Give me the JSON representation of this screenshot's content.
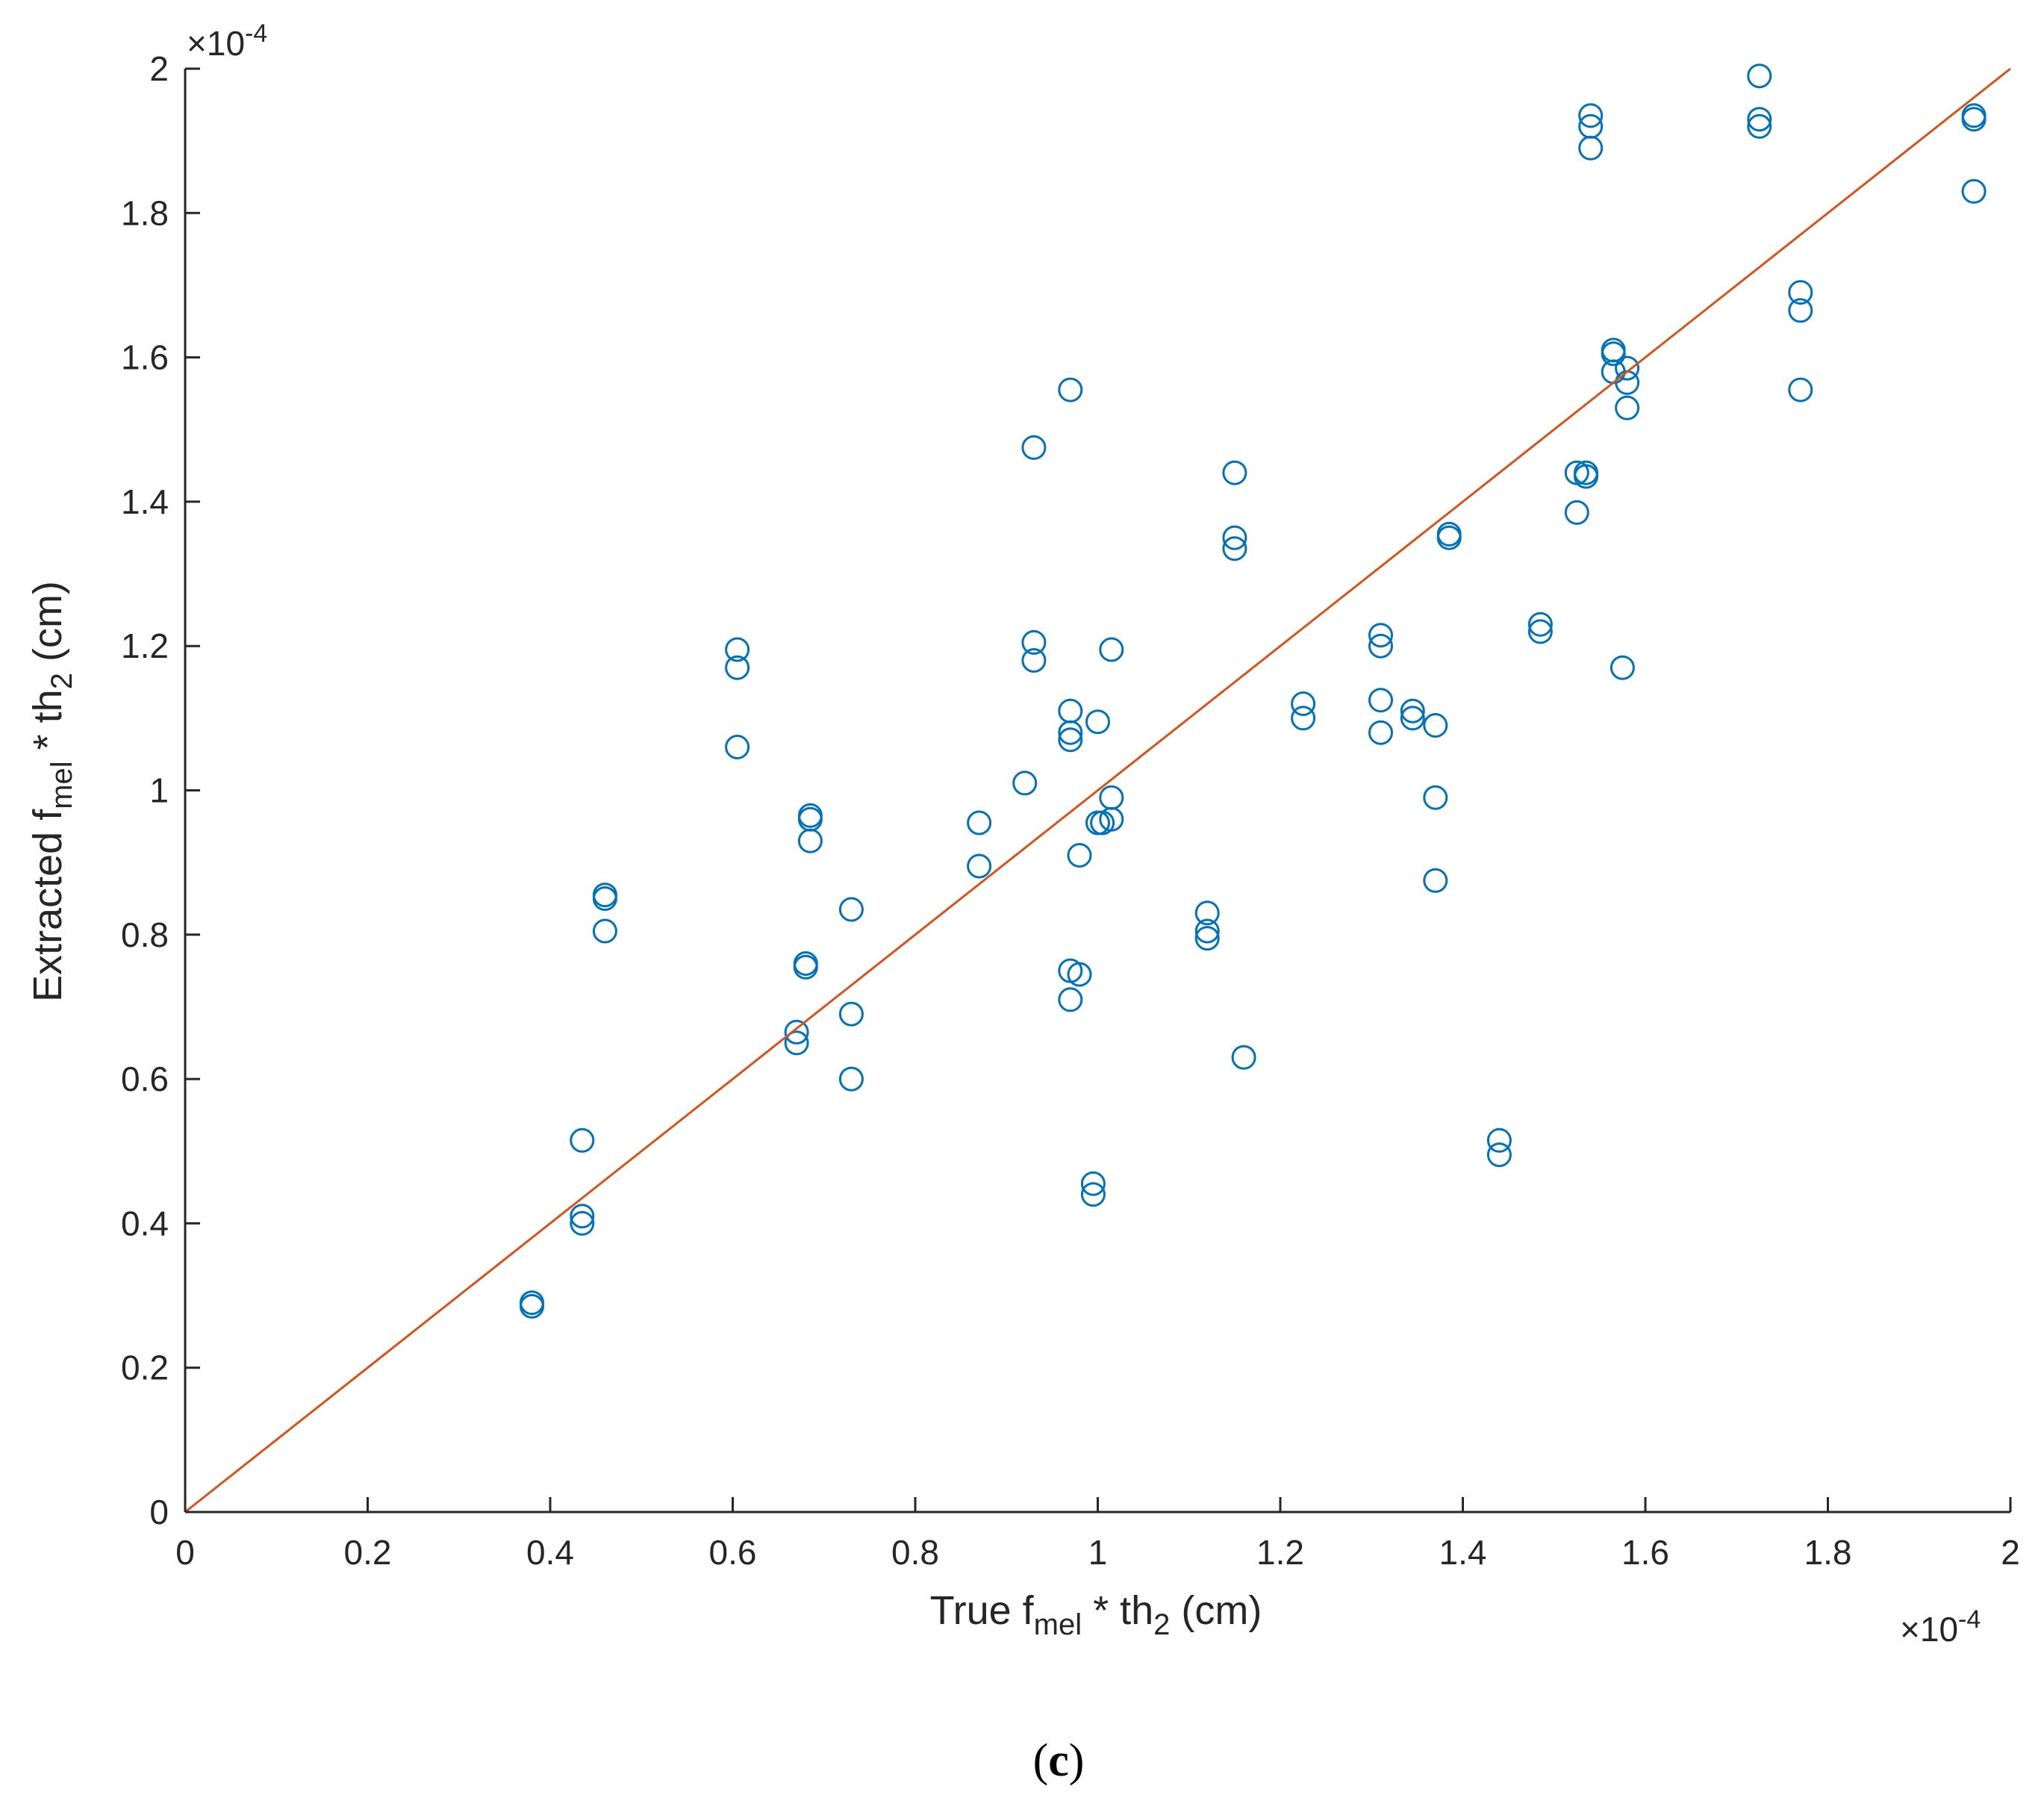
{
  "chart_data": {
    "type": "scatter",
    "xlabel": {
      "main": "True f",
      "sub": "mel",
      "mid": " * th",
      "sub2": "2",
      "unit": " (cm)"
    },
    "ylabel": {
      "main": "Extracted f",
      "sub": "mel",
      "mid": " * th",
      "sub2": "2",
      "unit": " (cm)"
    },
    "x_multiplier": {
      "base": "×10",
      "exp": "-4"
    },
    "y_multiplier": {
      "base": "×10",
      "exp": "-4"
    },
    "xlim": [
      0,
      2
    ],
    "ylim": [
      0,
      2
    ],
    "xticks": [
      0,
      0.2,
      0.4,
      0.6,
      0.8,
      1,
      1.2,
      1.4,
      1.6,
      1.8,
      2
    ],
    "yticks": [
      0,
      0.2,
      0.4,
      0.6,
      0.8,
      1,
      1.2,
      1.4,
      1.6,
      1.8,
      2
    ],
    "xtick_labels": [
      "0",
      "0.2",
      "0.4",
      "0.6",
      "0.8",
      "1",
      "1.2",
      "1.4",
      "1.6",
      "1.8",
      "2"
    ],
    "ytick_labels": [
      "0",
      "0.2",
      "0.4",
      "0.6",
      "0.8",
      "1",
      "1.2",
      "1.4",
      "1.6",
      "1.8",
      "2"
    ],
    "series": [
      {
        "name": "extracted",
        "marker": "circle-open",
        "color": "#0072BD",
        "points": [
          [
            0.38,
            0.29
          ],
          [
            0.38,
            0.285
          ],
          [
            0.435,
            0.515
          ],
          [
            0.435,
            0.41
          ],
          [
            0.435,
            0.4
          ],
          [
            0.46,
            0.855
          ],
          [
            0.46,
            0.85
          ],
          [
            0.46,
            0.805
          ],
          [
            0.605,
            1.195
          ],
          [
            0.605,
            1.17
          ],
          [
            0.605,
            1.06
          ],
          [
            0.67,
            0.665
          ],
          [
            0.67,
            0.65
          ],
          [
            0.68,
            0.76
          ],
          [
            0.68,
            0.755
          ],
          [
            0.685,
            0.965
          ],
          [
            0.685,
            0.96
          ],
          [
            0.685,
            0.93
          ],
          [
            0.73,
            0.835
          ],
          [
            0.73,
            0.69
          ],
          [
            0.73,
            0.6
          ],
          [
            0.87,
            0.955
          ],
          [
            0.87,
            0.895
          ],
          [
            0.92,
            1.01
          ],
          [
            0.93,
            1.475
          ],
          [
            0.93,
            1.205
          ],
          [
            0.93,
            1.18
          ],
          [
            0.97,
            1.555
          ],
          [
            0.97,
            1.11
          ],
          [
            0.97,
            1.08
          ],
          [
            0.97,
            1.07
          ],
          [
            0.97,
            0.75
          ],
          [
            0.97,
            0.71
          ],
          [
            0.98,
            0.91
          ],
          [
            0.98,
            0.745
          ],
          [
            0.995,
            0.455
          ],
          [
            0.995,
            0.44
          ],
          [
            1.0,
            1.095
          ],
          [
            1.0,
            0.955
          ],
          [
            1.005,
            0.955
          ],
          [
            1.015,
            1.195
          ],
          [
            1.015,
            0.99
          ],
          [
            1.015,
            0.96
          ],
          [
            1.12,
            0.83
          ],
          [
            1.12,
            0.805
          ],
          [
            1.12,
            0.795
          ],
          [
            1.15,
            1.44
          ],
          [
            1.15,
            1.35
          ],
          [
            1.15,
            1.335
          ],
          [
            1.16,
            0.63
          ],
          [
            1.225,
            1.12
          ],
          [
            1.225,
            1.1
          ],
          [
            1.31,
            1.215
          ],
          [
            1.31,
            1.2
          ],
          [
            1.31,
            1.125
          ],
          [
            1.31,
            1.08
          ],
          [
            1.345,
            1.11
          ],
          [
            1.345,
            1.1
          ],
          [
            1.37,
            1.09
          ],
          [
            1.37,
            0.99
          ],
          [
            1.37,
            0.875
          ],
          [
            1.385,
            1.355
          ],
          [
            1.385,
            1.35
          ],
          [
            1.44,
            0.515
          ],
          [
            1.44,
            0.495
          ],
          [
            1.485,
            1.23
          ],
          [
            1.485,
            1.22
          ],
          [
            1.525,
            1.44
          ],
          [
            1.525,
            1.385
          ],
          [
            1.535,
            1.44
          ],
          [
            1.535,
            1.435
          ],
          [
            1.54,
            1.935
          ],
          [
            1.54,
            1.92
          ],
          [
            1.54,
            1.89
          ],
          [
            1.565,
            1.61
          ],
          [
            1.565,
            1.605
          ],
          [
            1.565,
            1.58
          ],
          [
            1.575,
            1.17
          ],
          [
            1.58,
            1.585
          ],
          [
            1.58,
            1.565
          ],
          [
            1.58,
            1.53
          ],
          [
            1.725,
            1.99
          ],
          [
            1.725,
            1.93
          ],
          [
            1.725,
            1.92
          ],
          [
            1.77,
            1.69
          ],
          [
            1.77,
            1.665
          ],
          [
            1.77,
            1.555
          ],
          [
            1.96,
            1.935
          ],
          [
            1.96,
            1.93
          ],
          [
            1.96,
            1.83
          ]
        ]
      },
      {
        "name": "identity",
        "marker": "line",
        "color": "#D95319",
        "points": [
          [
            0,
            0
          ],
          [
            2,
            2
          ]
        ]
      }
    ],
    "grid": false,
    "legend": "none"
  },
  "panel_label": {
    "open": "(",
    "letter": "c",
    "close": ")"
  }
}
